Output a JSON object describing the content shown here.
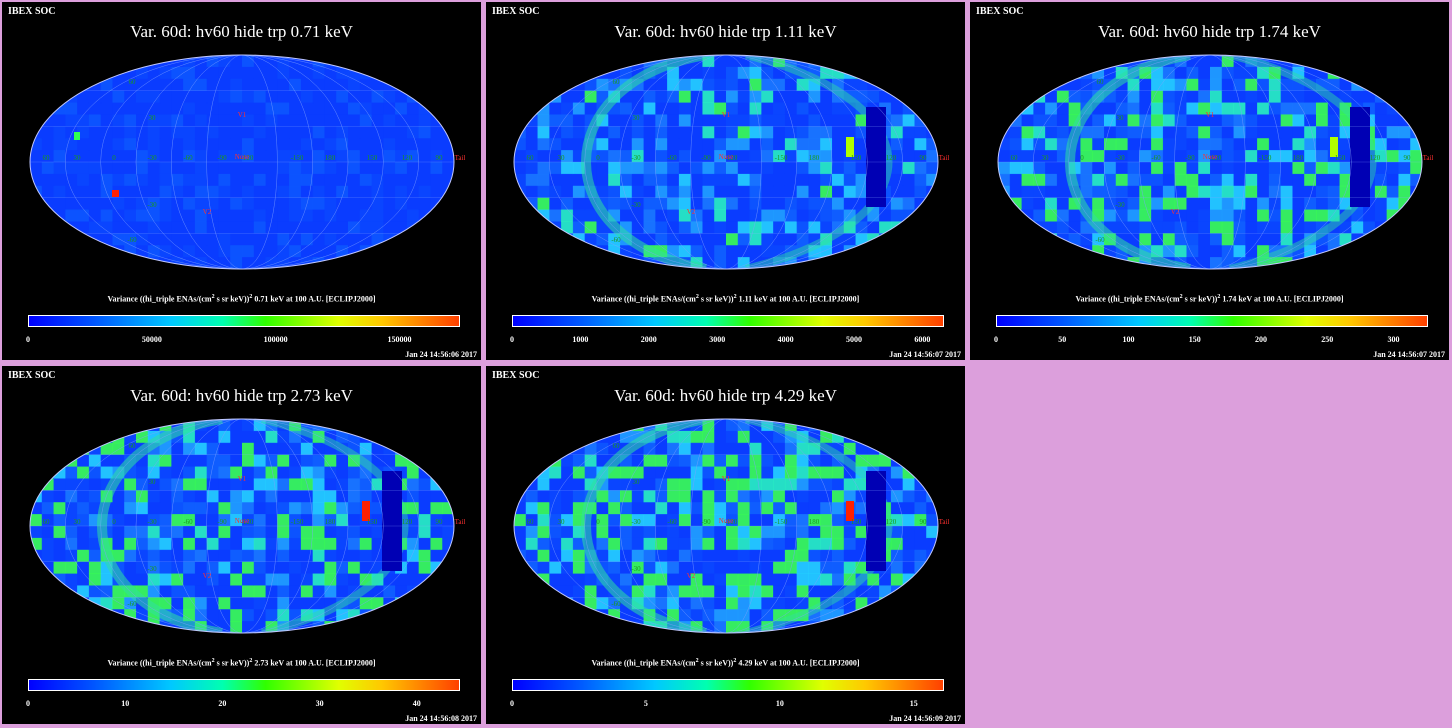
{
  "panels": [
    {
      "soc_label": "IBEX SOC",
      "title": "Var. 60d: hv60 hide trp 0.71 keV",
      "energy": "0.71",
      "variance_label": "Variance ((hi_triple ENAs/(cm",
      "variance_mid": " s sr keV))",
      "variance_tail": " 0.71 keV at 100 A.U. [ECLIPJ2000]",
      "ticks": [
        "0",
        "50000",
        "100000",
        "150000"
      ],
      "timestamp": "Jan 24 14:56:06 2017"
    },
    {
      "soc_label": "IBEX SOC",
      "title": "Var. 60d: hv60 hide trp 1.11 keV",
      "energy": "1.11",
      "variance_label": "Variance ((hi_triple ENAs/(cm",
      "variance_mid": " s sr keV))",
      "variance_tail": " 1.11 keV at 100 A.U. [ECLIPJ2000]",
      "ticks": [
        "0",
        "1000",
        "2000",
        "3000",
        "4000",
        "5000",
        "6000"
      ],
      "timestamp": "Jan 24 14:56:07 2017"
    },
    {
      "soc_label": "IBEX SOC",
      "title": "Var. 60d: hv60 hide trp 1.74 keV",
      "energy": "1.74",
      "variance_label": "Variance ((hi_triple ENAs/(cm",
      "variance_mid": " s sr keV))",
      "variance_tail": " 1.74 keV at 100 A.U. [ECLIPJ2000]",
      "ticks": [
        "0",
        "50",
        "100",
        "150",
        "200",
        "250",
        "300"
      ],
      "timestamp": "Jan 24 14:56:07 2017"
    },
    {
      "soc_label": "IBEX SOC",
      "title": "Var. 60d: hv60 hide trp 2.73 keV",
      "energy": "2.73",
      "variance_label": "Variance ((hi_triple ENAs/(cm",
      "variance_mid": " s sr keV))",
      "variance_tail": " 2.73 keV at 100 A.U. [ECLIPJ2000]",
      "ticks": [
        "0",
        "10",
        "20",
        "30",
        "40"
      ],
      "timestamp": "Jan 24 14:56:08 2017"
    },
    {
      "soc_label": "IBEX SOC",
      "title": "Var. 60d: hv60 hide trp 4.29 keV",
      "energy": "4.29",
      "variance_label": "Variance ((hi_triple ENAs/(cm",
      "variance_mid": " s sr keV))",
      "variance_tail": " 4.29 keV at 100 A.U. [ECLIPJ2000]",
      "ticks": [
        "0",
        "5",
        "10",
        "15"
      ],
      "timestamp": "Jan 24 14:56:09 2017"
    }
  ],
  "map_labels": {
    "nose": "Nose",
    "tail": "Tail",
    "v1": "V1",
    "v2": "V2",
    "lon": [
      "60",
      "30",
      "0",
      "-30",
      "-60",
      "-90",
      "-120",
      "-150",
      "180",
      "150",
      "120",
      "90"
    ],
    "lat_top": "60",
    "lat_mid": "30",
    "lat_bot": "-30",
    "lat_bot2": "-60"
  },
  "colors": {
    "background_page": "#dc9fdc",
    "panel_bg": "#000000",
    "map_base": "#0a3cff",
    "nose_tail_label": "#ff3030",
    "grid_label": "#1a9a1a"
  }
}
